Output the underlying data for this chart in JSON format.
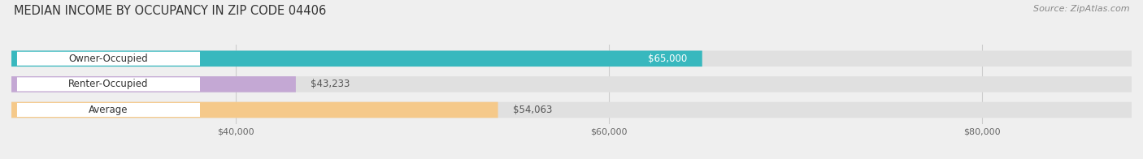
{
  "title": "MEDIAN INCOME BY OCCUPANCY IN ZIP CODE 04406",
  "source": "Source: ZipAtlas.com",
  "categories": [
    "Owner-Occupied",
    "Renter-Occupied",
    "Average"
  ],
  "values": [
    65000,
    43233,
    54063
  ],
  "bar_colors": [
    "#38b8be",
    "#c4a8d4",
    "#f5c98a"
  ],
  "value_labels": [
    "$65,000",
    "$43,233",
    "$54,063"
  ],
  "value_label_colors": [
    "#ffffff",
    "#555555",
    "#555555"
  ],
  "value_label_inside": [
    true,
    false,
    false
  ],
  "x_ticks": [
    40000,
    60000,
    80000
  ],
  "x_tick_labels": [
    "$40,000",
    "$60,000",
    "$80,000"
  ],
  "xlim_min": 28000,
  "xlim_max": 88000,
  "bar_height": 0.62,
  "background_color": "#efefef",
  "bar_bg_color": "#e0e0e0",
  "label_bg_color": "#ffffff",
  "title_fontsize": 10.5,
  "source_fontsize": 8,
  "label_fontsize": 8.5,
  "value_fontsize": 8.5,
  "tick_fontsize": 8
}
